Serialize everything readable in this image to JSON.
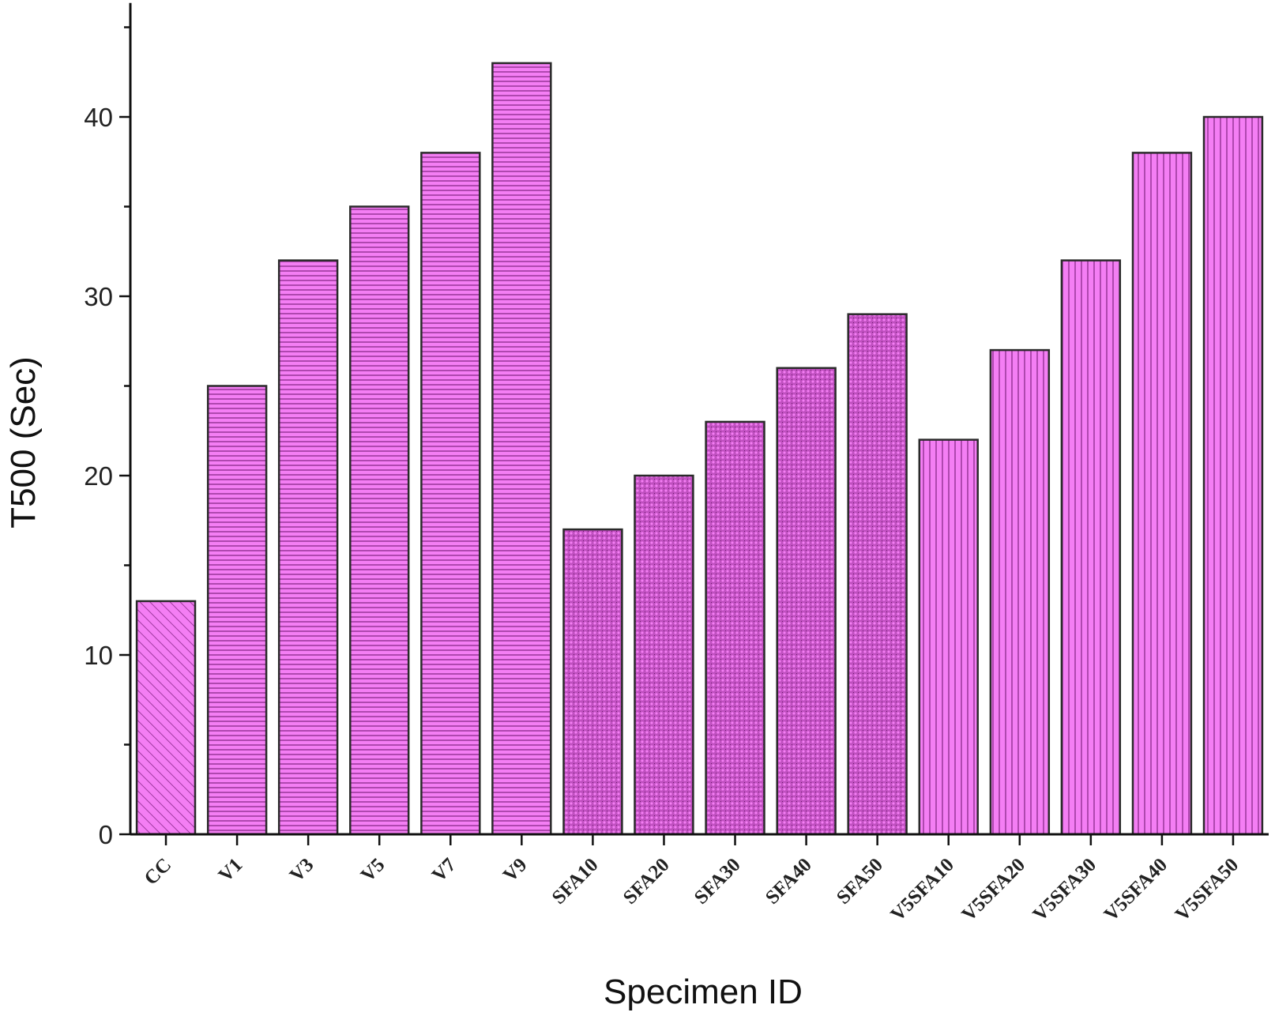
{
  "chart_data": {
    "type": "bar",
    "title": "",
    "xlabel": "Specimen ID",
    "ylabel": "T500 (Sec)",
    "ylim": [
      0,
      46
    ],
    "yticks_major": [
      0,
      10,
      20,
      30,
      40
    ],
    "yticks_minor_step": 5,
    "grid": false,
    "legend": "none",
    "bar_color": "#f47ef4",
    "edge_color": "#2a2a2a",
    "categories": [
      "CC",
      "V1",
      "V3",
      "V5",
      "V7",
      "V9",
      "SFA10",
      "SFA20",
      "SFA30",
      "SFA40",
      "SFA50",
      "V5SFA10",
      "V5SFA20",
      "V5SFA30",
      "V5SFA40",
      "V5SFA50"
    ],
    "values": [
      13,
      25,
      32,
      35,
      38,
      43,
      17,
      20,
      23,
      26,
      29,
      22,
      27,
      32,
      38,
      40
    ],
    "patterns": [
      "diagonal",
      "horizontal",
      "horizontal",
      "horizontal",
      "horizontal",
      "horizontal",
      "crosshatch",
      "crosshatch",
      "crosshatch",
      "crosshatch",
      "crosshatch",
      "vertical",
      "vertical",
      "vertical",
      "vertical",
      "vertical"
    ]
  }
}
